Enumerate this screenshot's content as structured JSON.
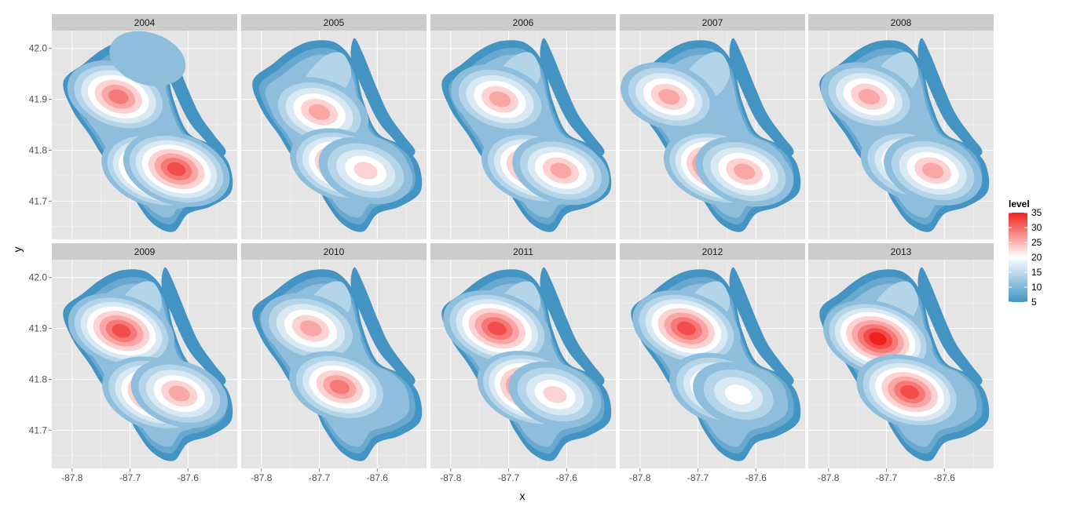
{
  "chart_data": {
    "type": "contour_density",
    "facet_variable": "year",
    "facets": [
      "2004",
      "2005",
      "2006",
      "2007",
      "2008",
      "2009",
      "2010",
      "2011",
      "2012",
      "2013"
    ],
    "xlabel": "x",
    "ylabel": "y",
    "xlim": [
      -87.835,
      -87.515
    ],
    "ylim": [
      41.625,
      42.035
    ],
    "x_ticks": [
      -87.8,
      -87.7,
      -87.6
    ],
    "x_tick_labels": [
      "-87.8",
      "-87.7",
      "-87.6"
    ],
    "y_ticks": [
      41.7,
      41.8,
      41.9,
      42.0
    ],
    "y_tick_labels": [
      "41.7",
      "41.8",
      "41.9",
      "42.0"
    ],
    "grid": true,
    "legend": {
      "title": "level",
      "position": "right",
      "range": [
        5,
        35
      ],
      "breaks": [
        5,
        10,
        15,
        20,
        25,
        30,
        35
      ],
      "break_labels": [
        "5",
        "10",
        "15",
        "20",
        "25",
        "30",
        "35"
      ],
      "low_color": "#4393c3",
      "mid_color": "#ffffff",
      "high_color": "#f0201e",
      "midpoint": 20
    },
    "contour_levels": [
      5,
      8,
      11,
      14,
      17,
      20,
      23,
      26,
      29,
      32,
      35
    ],
    "panels": [
      {
        "facet": "2004",
        "peaks": [
          {
            "x": -87.72,
            "y": 41.905,
            "level": 30
          },
          {
            "x": -87.655,
            "y": 41.76,
            "level": 35
          },
          {
            "x": -87.62,
            "y": 41.763,
            "level": 33
          },
          {
            "x": -87.67,
            "y": 41.98,
            "level": 11
          }
        ]
      },
      {
        "facet": "2005",
        "peaks": [
          {
            "x": -87.7,
            "y": 41.875,
            "level": 27
          },
          {
            "x": -87.66,
            "y": 41.77,
            "level": 32
          },
          {
            "x": -87.62,
            "y": 41.76,
            "level": 24
          }
        ]
      },
      {
        "facet": "2006",
        "peaks": [
          {
            "x": -87.715,
            "y": 41.9,
            "level": 27
          },
          {
            "x": -87.655,
            "y": 41.765,
            "level": 33
          },
          {
            "x": -87.61,
            "y": 41.76,
            "level": 26
          }
        ]
      },
      {
        "facet": "2007",
        "peaks": [
          {
            "x": -87.75,
            "y": 41.905,
            "level": 26
          },
          {
            "x": -87.665,
            "y": 41.765,
            "level": 35
          },
          {
            "x": -87.62,
            "y": 41.758,
            "level": 27
          }
        ]
      },
      {
        "facet": "2008",
        "peaks": [
          {
            "x": -87.73,
            "y": 41.905,
            "level": 26
          },
          {
            "x": -87.655,
            "y": 41.77,
            "level": 31
          },
          {
            "x": -87.62,
            "y": 41.76,
            "level": 27
          }
        ]
      },
      {
        "facet": "2009",
        "peaks": [
          {
            "x": -87.715,
            "y": 41.895,
            "level": 33
          },
          {
            "x": -87.655,
            "y": 41.77,
            "level": 34
          },
          {
            "x": -87.615,
            "y": 41.772,
            "level": 26
          }
        ]
      },
      {
        "facet": "2010",
        "peaks": [
          {
            "x": -87.715,
            "y": 41.9,
            "level": 28
          },
          {
            "x": -87.665,
            "y": 41.785,
            "level": 29
          }
        ]
      },
      {
        "facet": "2011",
        "peaks": [
          {
            "x": -87.72,
            "y": 41.9,
            "level": 34
          },
          {
            "x": -87.66,
            "y": 41.78,
            "level": 35
          },
          {
            "x": -87.62,
            "y": 41.77,
            "level": 23
          }
        ]
      },
      {
        "facet": "2012",
        "peaks": [
          {
            "x": -87.72,
            "y": 41.9,
            "level": 34
          },
          {
            "x": -87.66,
            "y": 41.78,
            "level": 31
          },
          {
            "x": -87.63,
            "y": 41.77,
            "level": 22
          }
        ]
      },
      {
        "facet": "2013",
        "peaks": [
          {
            "x": -87.715,
            "y": 41.88,
            "level": 35
          },
          {
            "x": -87.66,
            "y": 41.775,
            "level": 33
          }
        ]
      }
    ]
  }
}
